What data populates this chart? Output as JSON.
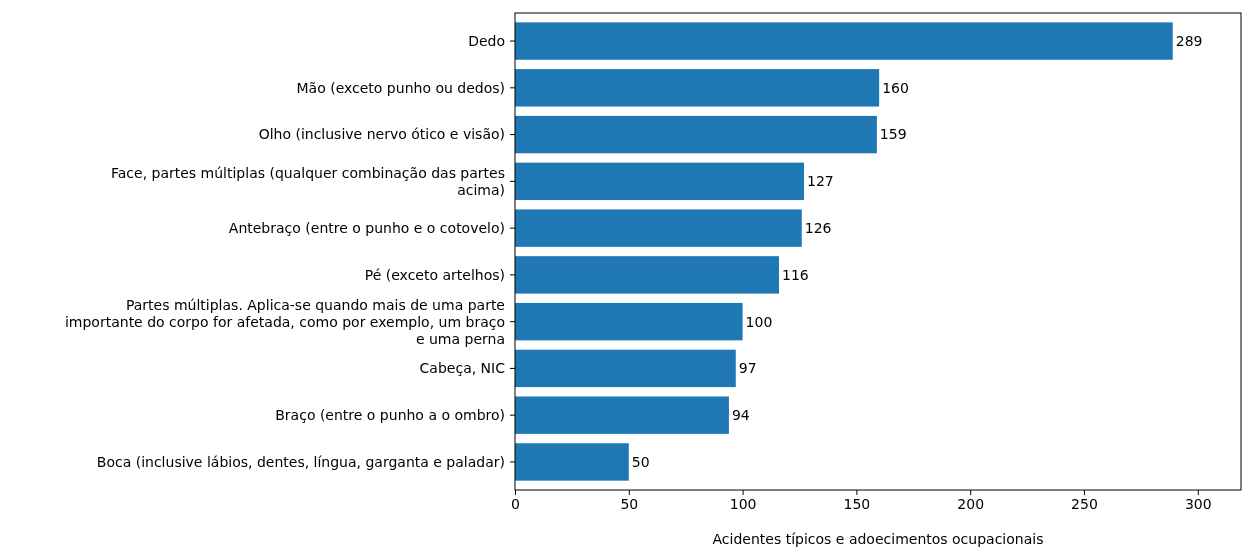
{
  "chart_data": {
    "type": "bar",
    "orientation": "horizontal",
    "xlabel": "Acidentes típicos e adoecimentos ocupacionais",
    "categories": [
      "Dedo",
      "Mão (exceto punho ou dedos)",
      "Olho (inclusive nervo ótico e visão)",
      "Face, partes múltiplas (qualquer combinação das partes acima)",
      "Antebraço (entre o punho e o cotovelo)",
      "Pé (exceto artelhos)",
      "Partes múltiplas. Aplica-se quando mais de uma parte importante do corpo for afetada, como por exemplo, um braço e uma perna",
      "Cabeça, NIC",
      "Braço (entre o punho a o ombro)",
      "Boca (inclusive lábios, dentes, língua, garganta e paladar)"
    ],
    "values": [
      289,
      160,
      159,
      127,
      126,
      116,
      100,
      97,
      94,
      50
    ],
    "color": "#1f77b4",
    "data_labels": true,
    "xlim": [
      0,
      319
    ],
    "xticks": [
      0,
      50,
      100,
      150,
      200,
      250,
      300
    ],
    "grid": false
  }
}
